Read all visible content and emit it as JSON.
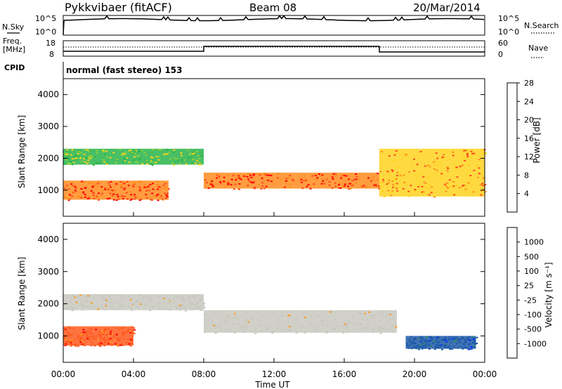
{
  "header": {
    "station": "Pykkvibaer (fitACF)",
    "beam": "Beam 08",
    "date": "20/Mar/2014"
  },
  "top_panels": {
    "nsky_label": "N.Sky",
    "nsky_ticks": [
      "10^5",
      "10^0"
    ],
    "nsearch_label": "N.Search",
    "nsearch_ticks": [
      "10^5",
      "10^0"
    ],
    "freq_label": [
      "Freq.",
      "[MHz]"
    ],
    "freq_ticks": [
      "18",
      "8"
    ],
    "nave_label": "Nave",
    "nave_ticks": [
      "60",
      "0"
    ],
    "cpid_label": "CPID",
    "cpid_text": "normal (fast stereo) 153"
  },
  "colors": {
    "power_scale": [
      "#0000ff",
      "#2e5fa8",
      "#4a9a6a",
      "#28b44a",
      "#8cd23c",
      "#ffd21e",
      "#ff8c1e",
      "#ff4b1e",
      "#ff0000"
    ],
    "velocity_scale": [
      "#ff0000",
      "#ff5a1e",
      "#ff9a1e",
      "#c8c8c0",
      "#c8c8c0",
      "#5ac84a",
      "#2e8a6a",
      "#1e5aa8",
      "#0a2eff"
    ],
    "ground_scatter": "#c8c8c0"
  },
  "chart_data": [
    {
      "type": "heatmap",
      "name": "power",
      "xlabel": "",
      "ylabel": "Slant Range [km]",
      "x_range": [
        "00:00",
        "00:00"
      ],
      "ylim": [
        180,
        4500
      ],
      "yticks": [
        "1000",
        "2000",
        "3000",
        "4000"
      ],
      "colorbar": {
        "label": "Power [dB]",
        "ticks": [
          "4",
          "8",
          "12",
          "16",
          "20",
          "24",
          "28"
        ],
        "range": [
          0,
          32
        ]
      },
      "bands": [
        {
          "x_start": 0.0,
          "x_end": 6.0,
          "range_lo": 700,
          "range_hi": 1300,
          "power": 28
        },
        {
          "x_start": 0.0,
          "x_end": 8.0,
          "range_lo": 1800,
          "range_hi": 2300,
          "power": 14
        },
        {
          "x_start": 8.0,
          "x_end": 18.0,
          "range_lo": 1050,
          "range_hi": 1550,
          "power": 26
        },
        {
          "x_start": 18.0,
          "x_end": 24.0,
          "range_lo": 800,
          "range_hi": 2300,
          "power": 24
        }
      ]
    },
    {
      "type": "heatmap",
      "name": "velocity",
      "xlabel": "Time UT",
      "ylabel": "Slant Range [km]",
      "xticks": [
        "00:00",
        "04:00",
        "08:00",
        "12:00",
        "16:00",
        "20:00",
        "00:00"
      ],
      "ylim": [
        180,
        4500
      ],
      "yticks": [
        "1000",
        "2000",
        "3000",
        "4000"
      ],
      "colorbar": {
        "label": "Velocity [m s⁻¹]",
        "ticks": [
          "1000",
          "500",
          "100",
          "25",
          "-25",
          "-100",
          "-500",
          "-1000"
        ],
        "range": [
          -1000,
          1000
        ]
      },
      "bands": [
        {
          "x_start": 0.0,
          "x_end": 4.0,
          "range_lo": 700,
          "range_hi": 1300,
          "velocity": -300
        },
        {
          "x_start": 0.0,
          "x_end": 8.0,
          "range_lo": 1800,
          "range_hi": 2300,
          "velocity": 0
        },
        {
          "x_start": 8.0,
          "x_end": 19.0,
          "range_lo": 1100,
          "range_hi": 1800,
          "velocity": 0
        },
        {
          "x_start": 19.5,
          "x_end": 23.5,
          "range_lo": 600,
          "range_hi": 1000,
          "velocity": 700
        }
      ]
    }
  ]
}
